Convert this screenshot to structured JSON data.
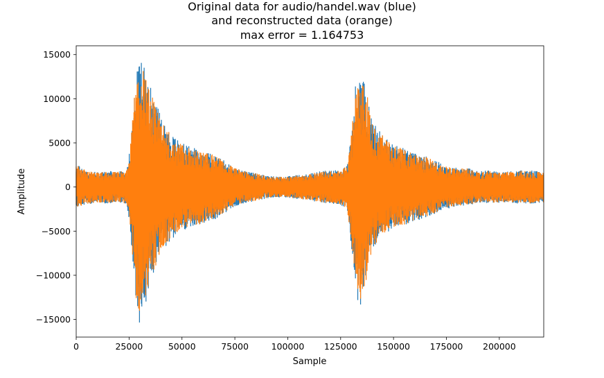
{
  "chart_data": {
    "type": "line",
    "title_lines": [
      "Original data for audio/handel.wav (blue)",
      "and reconstructed data (orange)",
      "max error = 1.164753"
    ],
    "xlabel": "Sample",
    "ylabel": "Amplitude",
    "xlim": [
      0,
      221000
    ],
    "ylim": [
      -17000,
      16000
    ],
    "x_ticks": [
      0,
      25000,
      50000,
      75000,
      100000,
      125000,
      150000,
      175000,
      200000
    ],
    "y_ticks": [
      -15000,
      -10000,
      -5000,
      0,
      5000,
      10000,
      15000
    ],
    "grid": false,
    "series": [
      {
        "color": "#1f77b4"
      },
      {
        "color": "#ff7f0e"
      }
    ],
    "envelope": {
      "x": [
        0,
        5000,
        10000,
        15000,
        20000,
        24000,
        25500,
        28000,
        30000,
        32000,
        35000,
        40000,
        45000,
        50000,
        55000,
        60000,
        65000,
        70000,
        75000,
        80000,
        85000,
        90000,
        95000,
        100000,
        105000,
        110000,
        115000,
        120000,
        125000,
        128000,
        130000,
        132000,
        134000,
        136000,
        138000,
        140000,
        142000,
        145000,
        150000,
        155000,
        160000,
        165000,
        170000,
        175000,
        180000,
        185000,
        190000,
        195000,
        200000,
        205000,
        210000,
        215000,
        220000
      ],
      "upper": [
        2600,
        1900,
        1700,
        1800,
        1800,
        2000,
        4500,
        12000,
        14700,
        13800,
        11500,
        8000,
        6000,
        5000,
        4500,
        4000,
        3800,
        3000,
        2200,
        1800,
        1600,
        1300,
        1200,
        1200,
        1400,
        1500,
        1800,
        1900,
        1900,
        2600,
        6000,
        11500,
        12500,
        12000,
        10500,
        7500,
        6800,
        6000,
        4800,
        4500,
        3800,
        3600,
        3000,
        2400,
        2200,
        2200,
        1800,
        1900,
        1700,
        1800,
        1900,
        1900,
        1700
      ],
      "lower": [
        -2400,
        -2000,
        -1800,
        -1900,
        -1700,
        -2000,
        -4500,
        -12500,
        -15500,
        -14000,
        -11000,
        -7500,
        -6000,
        -5000,
        -4500,
        -4300,
        -3800,
        -3000,
        -2200,
        -1800,
        -1600,
        -1300,
        -1200,
        -1200,
        -1400,
        -1500,
        -1800,
        -1900,
        -2000,
        -2600,
        -6500,
        -11500,
        -14000,
        -12000,
        -10000,
        -7000,
        -6500,
        -5500,
        -4700,
        -4400,
        -3900,
        -3500,
        -3000,
        -2500,
        -2200,
        -2100,
        -1800,
        -1900,
        -1800,
        -1800,
        -1900,
        -1900,
        -1800
      ]
    }
  }
}
